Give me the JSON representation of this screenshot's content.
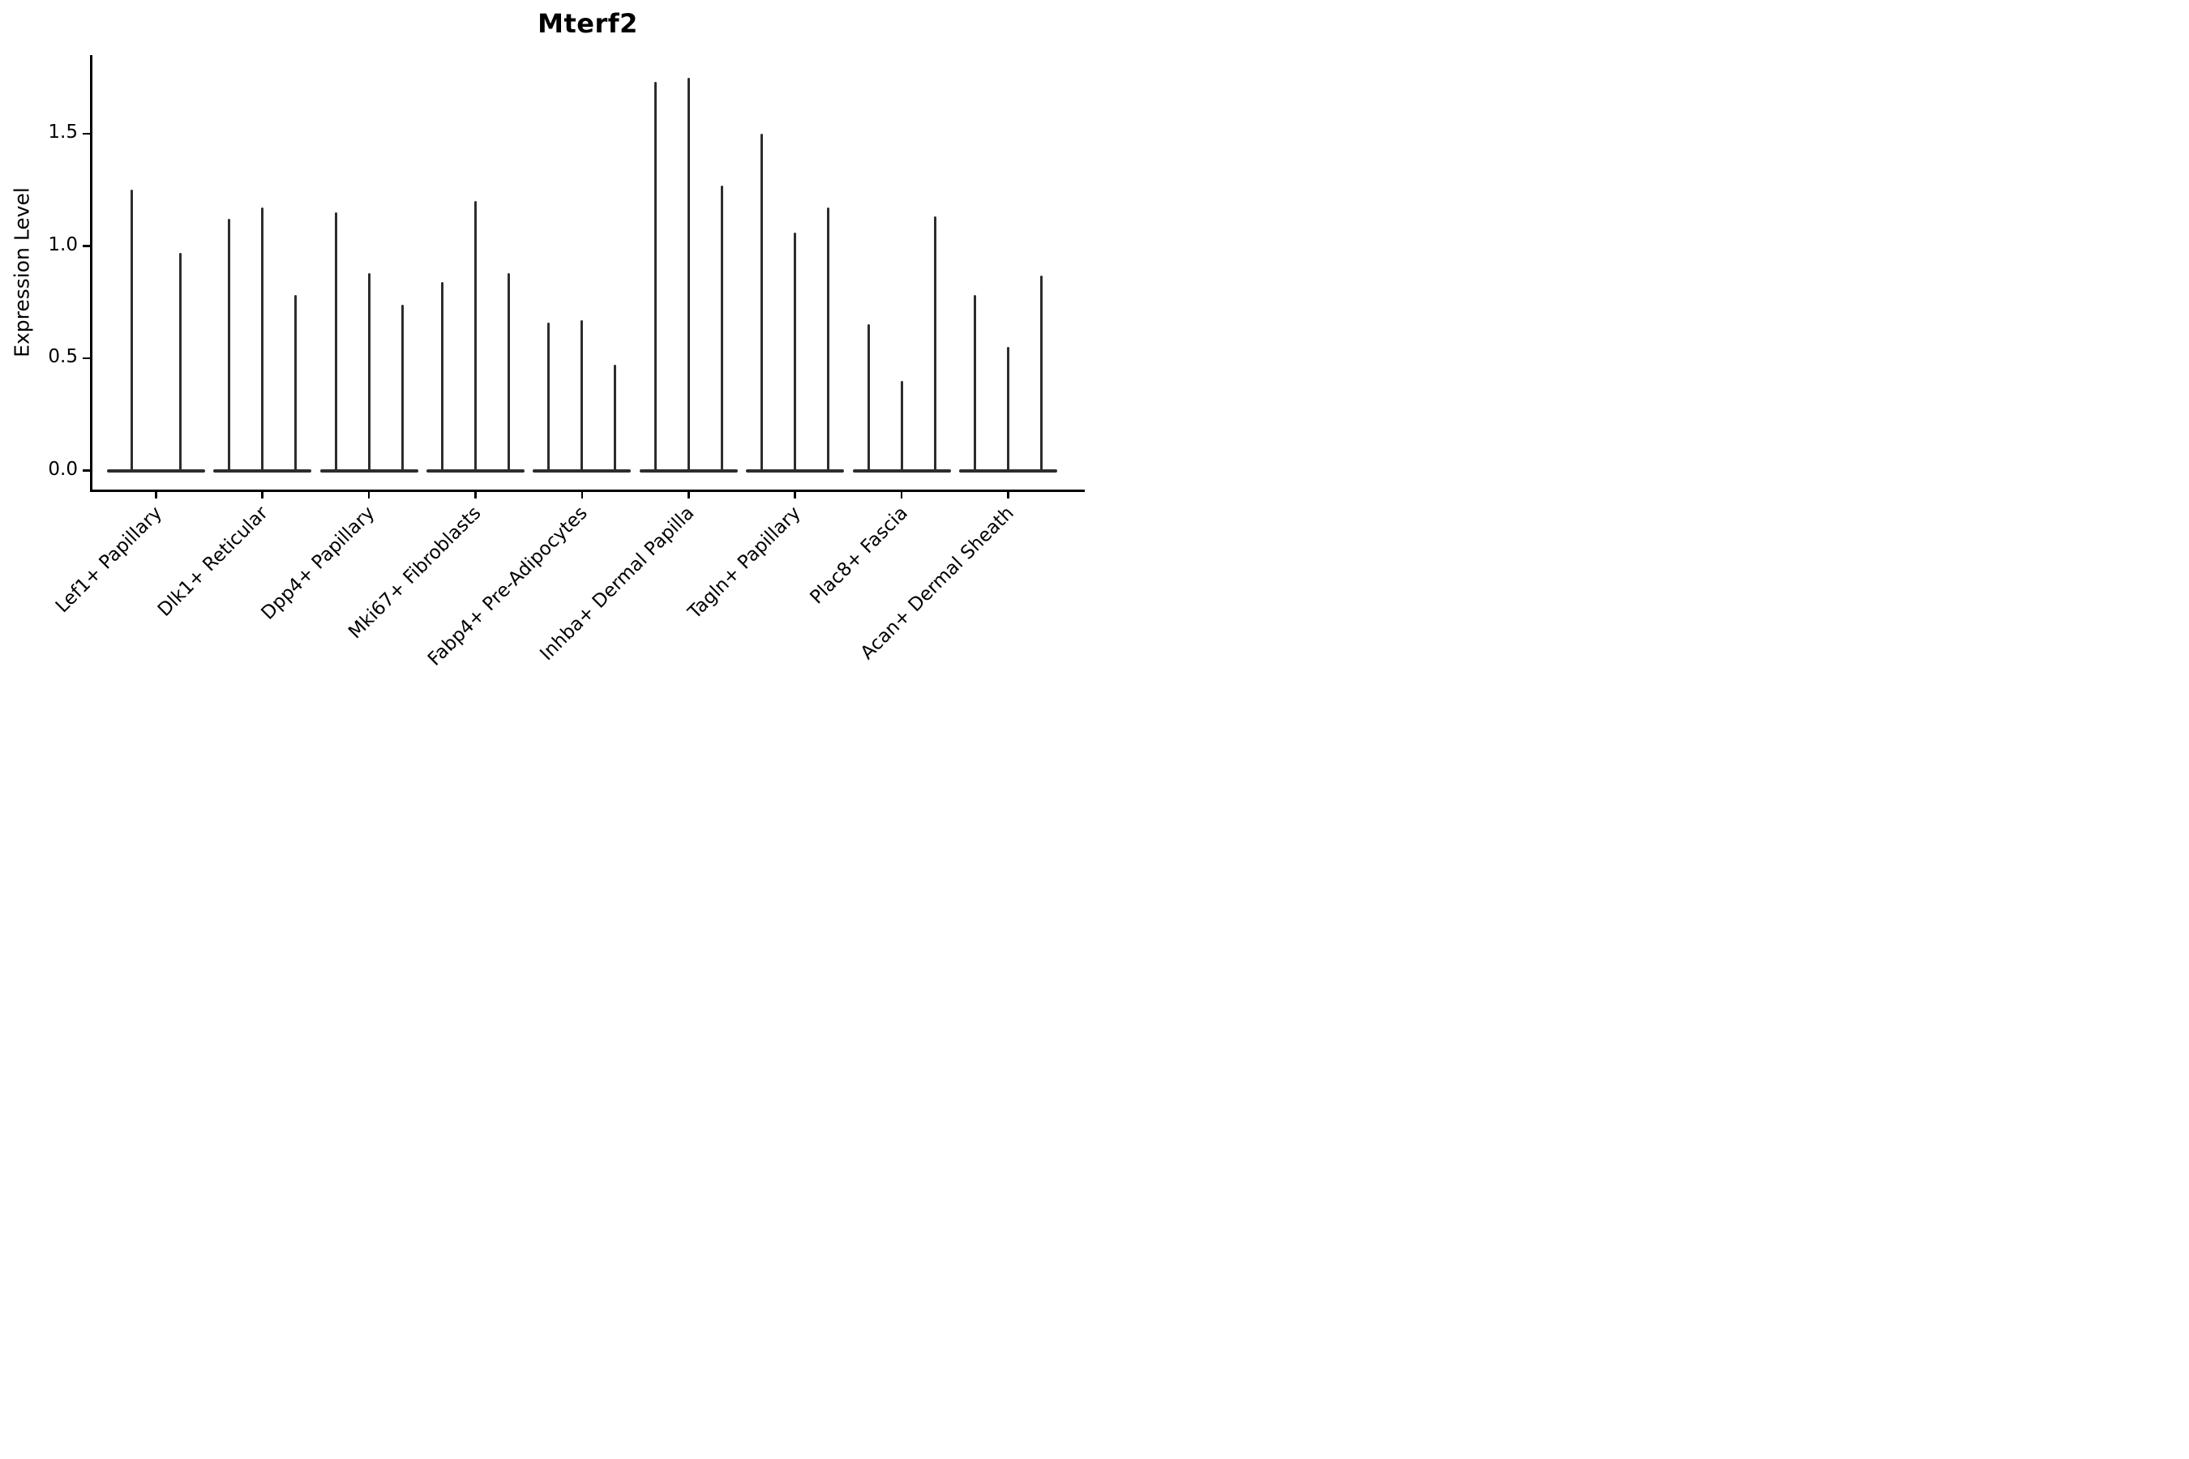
{
  "figure": {
    "title": "Mterf2",
    "y_axis_title": "Expression Level"
  },
  "chart_data": {
    "type": "violin",
    "title": "Mterf2",
    "xlabel": "",
    "ylabel": "Expression Level",
    "ytick_labels": [
      "0.0",
      "0.5",
      "1.0",
      "1.5"
    ],
    "ytick_values": [
      0.0,
      0.5,
      1.0,
      1.5
    ],
    "ylim": [
      -0.085,
      1.85
    ],
    "grid": false,
    "legend": "none",
    "violin_style": "collapsed-to-zero baseline with thin max-expression spike",
    "categories": [
      "Lef1+ Papillary",
      "Dlk1+ Reticular",
      "Dpp4+ Papillary",
      "Mki67+ Fibroblasts",
      "Fabp4+ Pre-Adipocytes",
      "Inhba+ Dermal Papilla",
      "Tagln+ Papillary",
      "Plac8+ Fascia",
      "Acan+ Dermal Sheath"
    ],
    "groups": [
      {
        "category": "Lef1+ Papillary",
        "violins_per_group": 2,
        "spike_max_values": [
          1.25,
          0.97
        ]
      },
      {
        "category": "Dlk1+ Reticular",
        "violins_per_group": 3,
        "spike_max_values": [
          1.12,
          1.17,
          0.78
        ]
      },
      {
        "category": "Dpp4+ Papillary",
        "violins_per_group": 3,
        "spike_max_values": [
          1.15,
          0.88,
          0.74
        ]
      },
      {
        "category": "Mki67+ Fibroblasts",
        "violins_per_group": 3,
        "spike_max_values": [
          0.84,
          1.2,
          0.88
        ]
      },
      {
        "category": "Fabp4+ Pre-Adipocytes",
        "violins_per_group": 3,
        "spike_max_values": [
          0.66,
          0.67,
          0.47
        ]
      },
      {
        "category": "Inhba+ Dermal Papilla",
        "violins_per_group": 3,
        "spike_max_values": [
          1.73,
          1.75,
          1.27
        ]
      },
      {
        "category": "Tagln+ Papillary",
        "violins_per_group": 3,
        "spike_max_values": [
          1.5,
          1.06,
          1.17
        ]
      },
      {
        "category": "Plac8+ Fascia",
        "violins_per_group": 3,
        "spike_max_values": [
          0.65,
          0.4,
          1.13
        ]
      },
      {
        "category": "Acan+ Dermal Sheath",
        "violins_per_group": 3,
        "spike_max_values": [
          0.78,
          0.55,
          0.87
        ]
      }
    ],
    "colors": {
      "violin": "#2d2d2d",
      "axis": "#000000",
      "text": "#000000",
      "background": "#ffffff"
    }
  }
}
